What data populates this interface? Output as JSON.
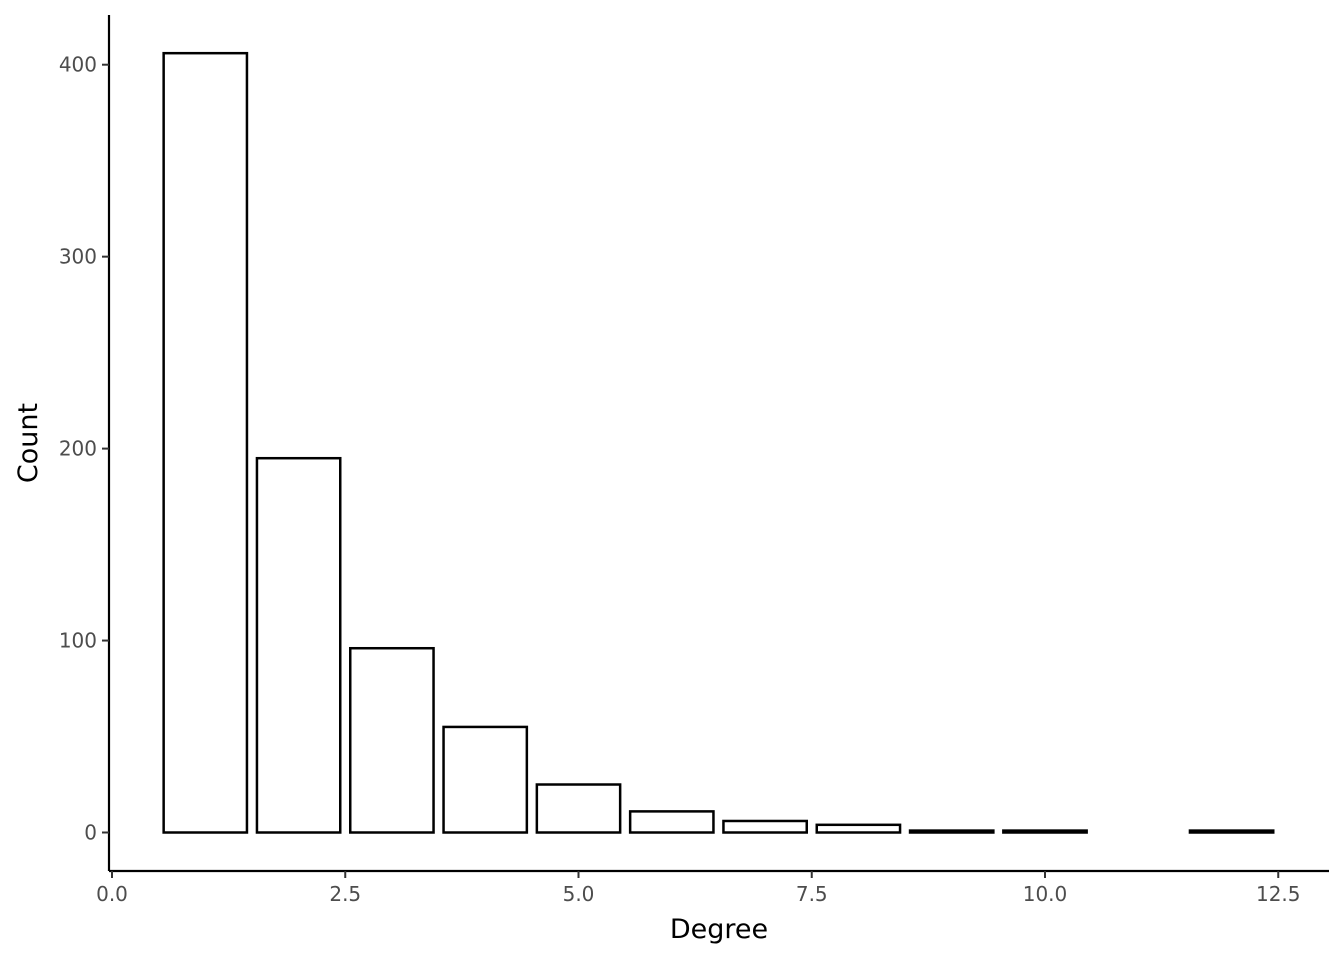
{
  "chart_data": {
    "type": "bar",
    "title": "",
    "xlabel": "Degree",
    "ylabel": "Count",
    "x": [
      1,
      2,
      3,
      4,
      5,
      6,
      7,
      8,
      9,
      10,
      12
    ],
    "values": [
      406,
      195,
      96,
      55,
      25,
      11,
      6,
      4,
      1,
      1,
      1
    ],
    "xlim": [
      0,
      13
    ],
    "ylim": [
      0,
      420
    ],
    "x_ticks": [
      0.0,
      2.5,
      5.0,
      7.5,
      10.0,
      12.5
    ],
    "x_tick_labels": [
      "0.0",
      "2.5",
      "5.0",
      "7.5",
      "10.0",
      "12.5"
    ],
    "y_ticks": [
      0,
      100,
      200,
      300,
      400
    ],
    "y_tick_labels": [
      "0",
      "100",
      "200",
      "300",
      "400"
    ],
    "grid": false,
    "bar_fill": "#ffffff",
    "bar_stroke": "#000000"
  }
}
